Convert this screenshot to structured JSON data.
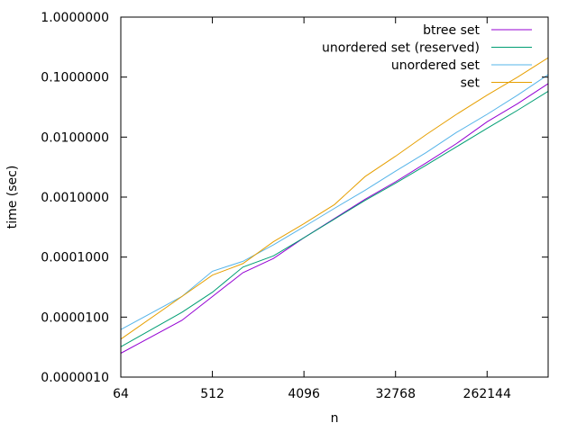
{
  "chart_data": {
    "type": "line",
    "title": "",
    "xlabel": "n",
    "ylabel": "time (sec)",
    "x_scale": "log2",
    "y_scale": "log10",
    "xlim": [
      64,
      1048576
    ],
    "ylim": [
      1e-06,
      1.0
    ],
    "grid": false,
    "legend_position": "top-right",
    "x_tick_values": [
      64,
      512,
      4096,
      32768,
      262144
    ],
    "x_tick_labels": [
      "64",
      "512",
      "4096",
      "32768",
      "262144"
    ],
    "y_tick_values": [
      1e-06,
      1e-05,
      0.0001,
      0.001,
      0.01,
      0.1,
      1.0
    ],
    "y_tick_labels": [
      "0.0000010",
      "0.0000100",
      "0.0001000",
      "0.0010000",
      "0.0100000",
      "0.1000000",
      "1.0000000"
    ],
    "series": [
      {
        "name": "btree set",
        "color": "#9400d3",
        "points": [
          [
            64,
            2.5e-06
          ],
          [
            256,
            8.8e-06
          ],
          [
            512,
            2.2e-05
          ],
          [
            1024,
            5.5e-05
          ],
          [
            2048,
            9.5e-05
          ],
          [
            4096,
            0.00021
          ],
          [
            8192,
            0.00044
          ],
          [
            16384,
            0.00092
          ],
          [
            32768,
            0.0018
          ],
          [
            65536,
            0.0037
          ],
          [
            131072,
            0.0078
          ],
          [
            262144,
            0.018
          ],
          [
            524288,
            0.036
          ],
          [
            1048576,
            0.078
          ]
        ]
      },
      {
        "name": "unordered set (reserved)",
        "color": "#009e73",
        "points": [
          [
            64,
            3.2e-06
          ],
          [
            256,
            1.2e-05
          ],
          [
            512,
            2.6e-05
          ],
          [
            1024,
            6.8e-05
          ],
          [
            2048,
            0.000105
          ],
          [
            4096,
            0.00021
          ],
          [
            8192,
            0.00043
          ],
          [
            16384,
            0.00088
          ],
          [
            32768,
            0.0017
          ],
          [
            65536,
            0.0034
          ],
          [
            131072,
            0.0069
          ],
          [
            262144,
            0.014
          ],
          [
            524288,
            0.028
          ],
          [
            1048576,
            0.058
          ]
        ]
      },
      {
        "name": "unordered set",
        "color": "#56b4e9",
        "points": [
          [
            64,
            6.2e-06
          ],
          [
            256,
            2.2e-05
          ],
          [
            512,
            5.8e-05
          ],
          [
            1024,
            8.5e-05
          ],
          [
            2048,
            0.00016
          ],
          [
            4096,
            0.00032
          ],
          [
            8192,
            0.00065
          ],
          [
            16384,
            0.0013
          ],
          [
            32768,
            0.0027
          ],
          [
            65536,
            0.0055
          ],
          [
            131072,
            0.012
          ],
          [
            262144,
            0.024
          ],
          [
            524288,
            0.05
          ],
          [
            1048576,
            0.11
          ]
        ]
      },
      {
        "name": "set",
        "color": "#e69f00",
        "points": [
          [
            64,
            4.3e-06
          ],
          [
            256,
            2.2e-05
          ],
          [
            512,
            5e-05
          ],
          [
            1024,
            7.8e-05
          ],
          [
            2048,
            0.00018
          ],
          [
            4096,
            0.00036
          ],
          [
            8192,
            0.00075
          ],
          [
            16384,
            0.0022
          ],
          [
            32768,
            0.0048
          ],
          [
            65536,
            0.011
          ],
          [
            131072,
            0.024
          ],
          [
            262144,
            0.05
          ],
          [
            524288,
            0.1
          ],
          [
            1048576,
            0.21
          ]
        ]
      }
    ]
  }
}
